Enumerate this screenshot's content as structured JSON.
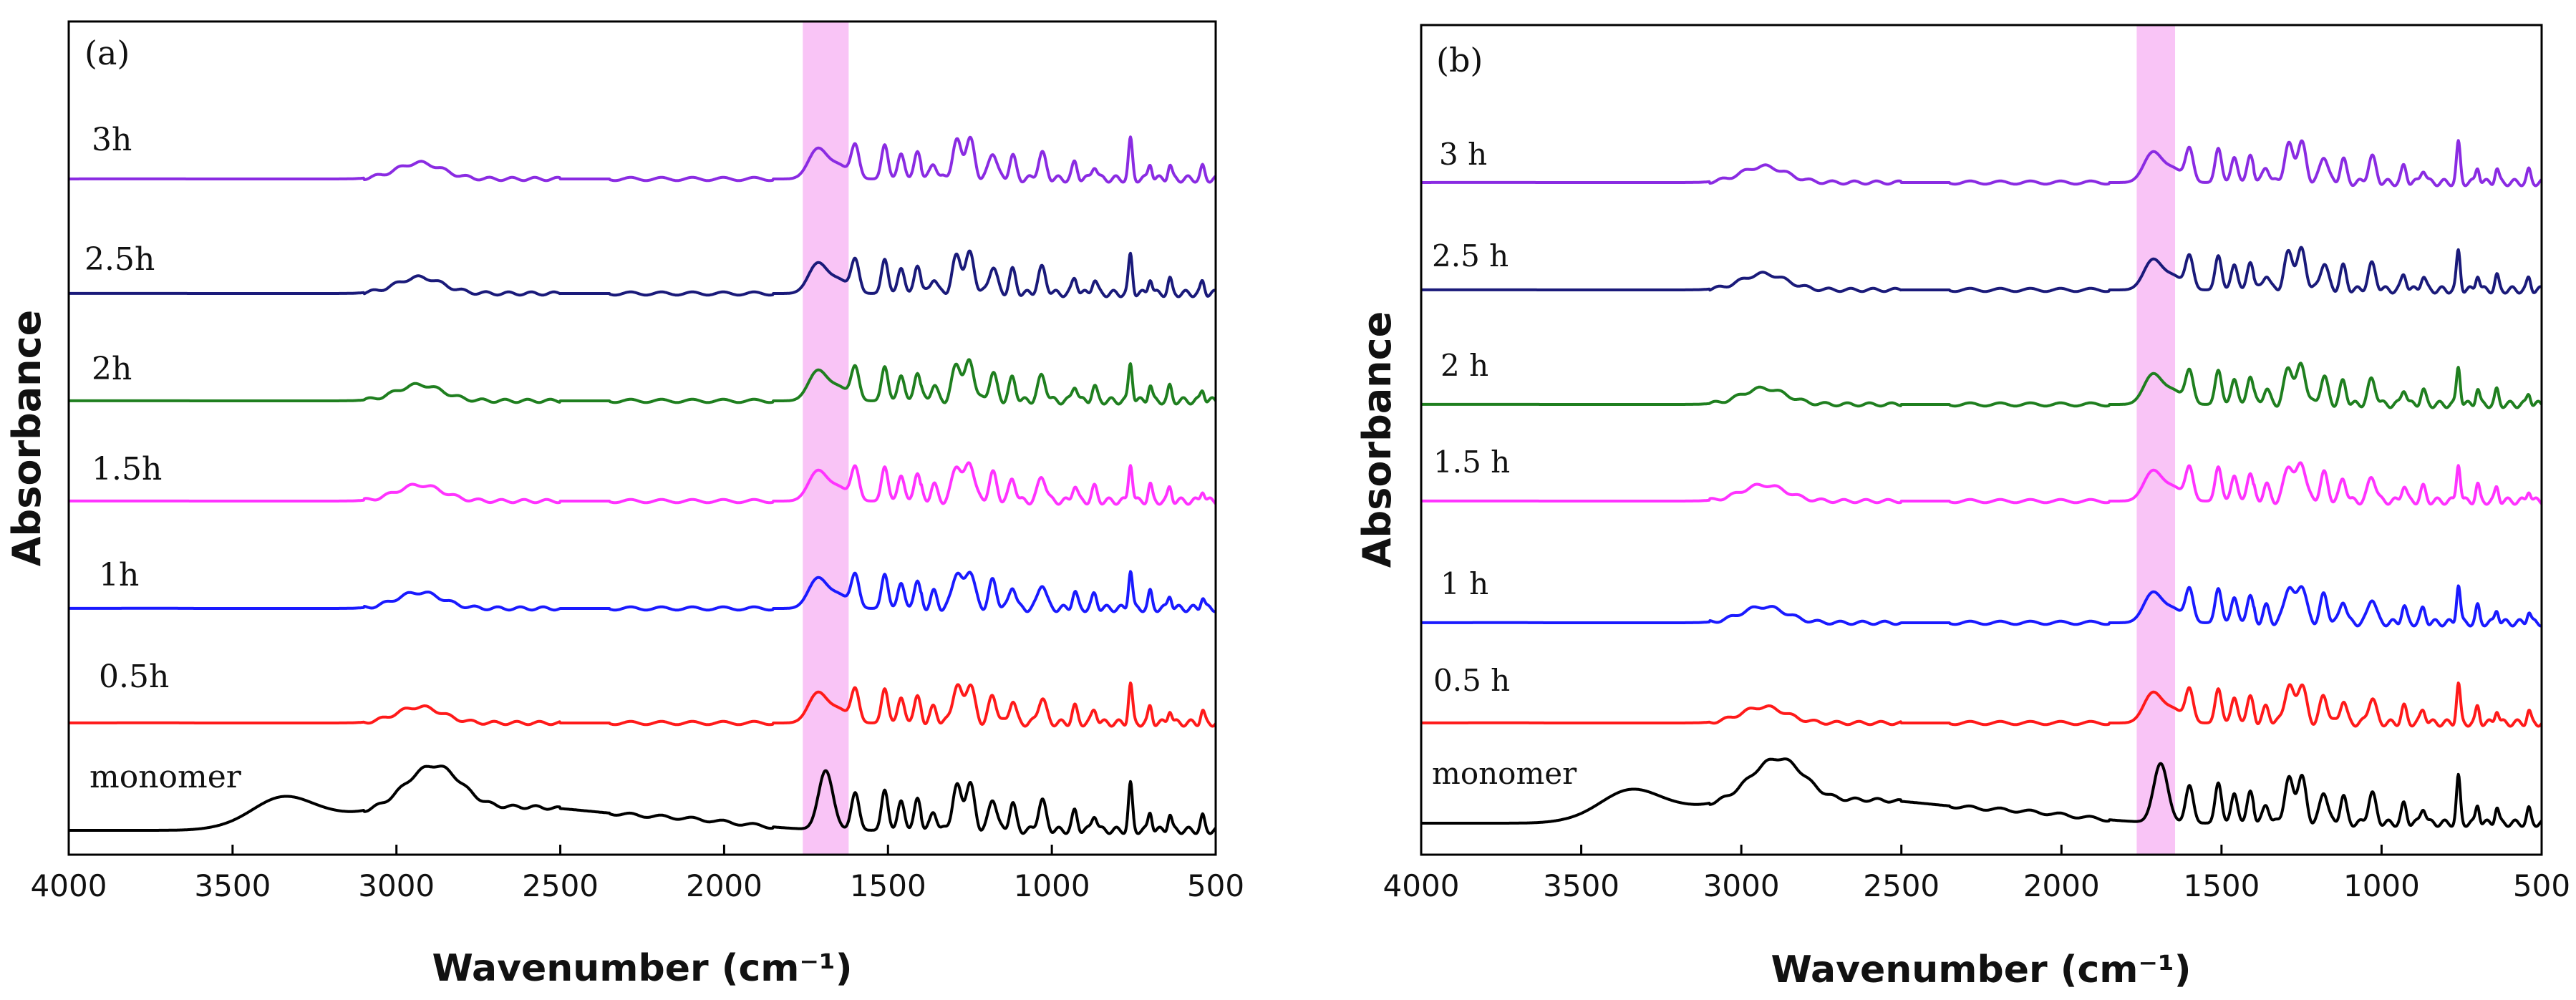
{
  "chart_data": [
    {
      "type": "line",
      "panel_label": "(a)",
      "xlabel": "Wavenumber (cm⁻¹)",
      "ylabel": "Absorbance",
      "xlim": [
        4000,
        500
      ],
      "x_ticks": [
        4000,
        3500,
        3000,
        2500,
        2000,
        1500,
        1000,
        500
      ],
      "highlight_band": {
        "x_from": 1760,
        "x_to": 1620,
        "color": "#f9c4f6"
      },
      "series": [
        {
          "name": "monomer",
          "label": "monomer",
          "color": "#000000"
        },
        {
          "name": "0.5h",
          "label": "0.5h",
          "color": "#ff1a1a"
        },
        {
          "name": "1h",
          "label": "1h",
          "color": "#1a1aff"
        },
        {
          "name": "1.5h",
          "label": "1.5h",
          "color": "#ff33ff"
        },
        {
          "name": "2h",
          "label": "2h",
          "color": "#1f7f1f"
        },
        {
          "name": "2.5h",
          "label": "2.5h",
          "color": "#1a1a7a"
        },
        {
          "name": "3h",
          "label": "3h",
          "color": "#8a2be2"
        }
      ]
    },
    {
      "type": "line",
      "panel_label": "(b)",
      "xlabel": "Wavenumber (cm⁻¹)",
      "ylabel": "Absorbance",
      "xlim": [
        4000,
        500
      ],
      "x_ticks": [
        4000,
        3500,
        3000,
        2500,
        2000,
        1500,
        1000,
        500
      ],
      "highlight_band": {
        "x_from": 1765,
        "x_to": 1645,
        "color": "#f9c4f6"
      },
      "series": [
        {
          "name": "monomer",
          "label": "monomer",
          "color": "#000000"
        },
        {
          "name": "0.5 h",
          "label": "0.5 h",
          "color": "#ff1a1a"
        },
        {
          "name": "1 h",
          "label": "1 h",
          "color": "#1a1aff"
        },
        {
          "name": "1.5 h",
          "label": "1.5 h",
          "color": "#ff33ff"
        },
        {
          "name": "2 h",
          "label": "2 h",
          "color": "#1f7f1f"
        },
        {
          "name": "2.5 h",
          "label": "2.5 h",
          "color": "#1a1a7a"
        },
        {
          "name": "3 h",
          "label": "3 h",
          "color": "#8a2be2"
        }
      ]
    }
  ]
}
